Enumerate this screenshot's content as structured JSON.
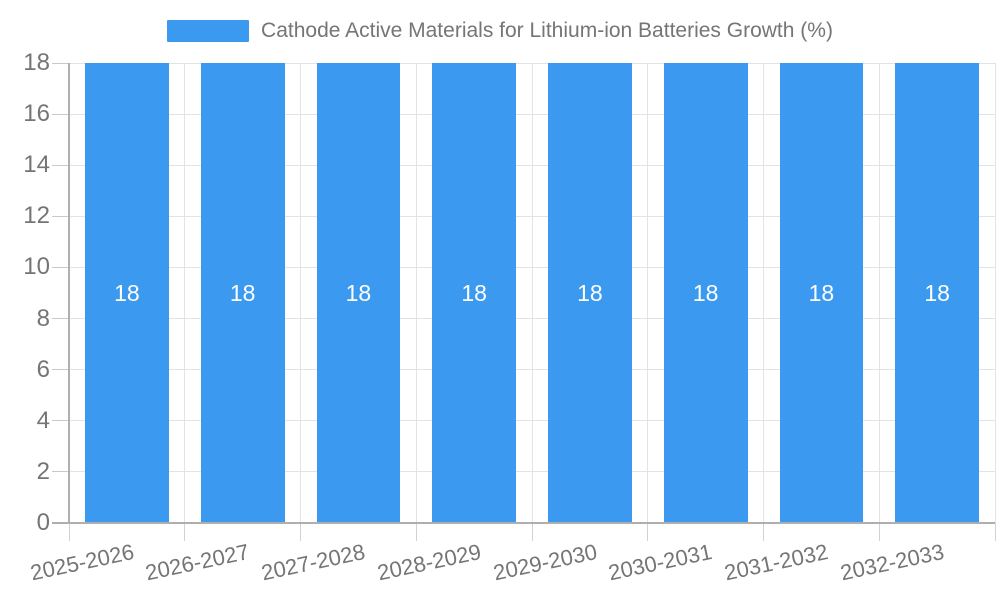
{
  "legend": {
    "label": "Cathode Active Materials for Lithium-ion Batteries Growth (%)"
  },
  "chart_data": {
    "type": "bar",
    "title": "Cathode Active Materials for Lithium-ion Batteries Growth (%)",
    "categories": [
      "2025-2026",
      "2026-2027",
      "2027-2028",
      "2028-2029",
      "2029-2030",
      "2030-2031",
      "2031-2032",
      "2032-2033"
    ],
    "values": [
      18,
      18,
      18,
      18,
      18,
      18,
      18,
      18
    ],
    "value_labels": [
      "18",
      "18",
      "18",
      "18",
      "18",
      "18",
      "18",
      "18"
    ],
    "xlabel": "",
    "ylabel": "",
    "ylim": [
      0,
      18
    ],
    "yticks": [
      0,
      2,
      4,
      6,
      8,
      10,
      12,
      14,
      16,
      18
    ],
    "grid": true,
    "legend_position": "top",
    "x_label_rotation_deg": -12,
    "colors": {
      "bar": "#3B9AEF",
      "grid_line": "#E3E3E3",
      "tick_stub": "#C9C9C9",
      "axis_line": "#AFAFAF",
      "below_axis_tick": "#D2D2D2",
      "axis_text": "#757575",
      "value_label_text": "#FFFFFF"
    }
  }
}
